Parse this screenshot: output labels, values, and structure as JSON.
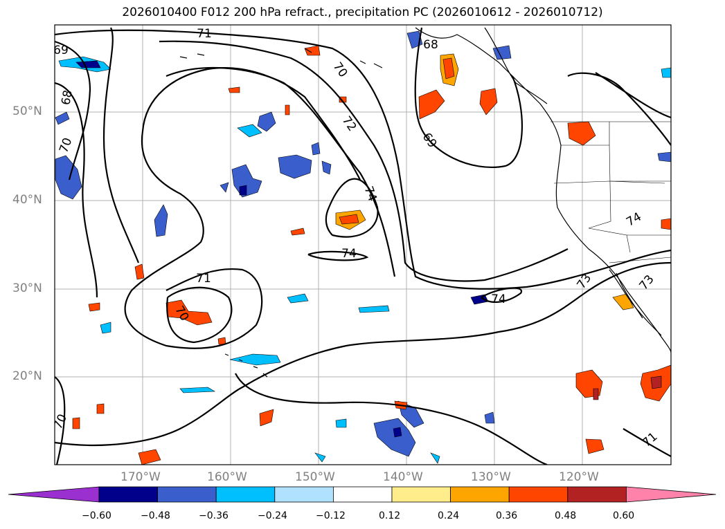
{
  "title": "2026010400 F012 200 hPa refract., precipitation PC (2026010612 - 2026010712)",
  "lat_labels": [
    "50°N",
    "40°N",
    "30°N",
    "20°N"
  ],
  "lon_labels": [
    "170°W",
    "160°W",
    "150°W",
    "140°W",
    "130°W",
    "120°W"
  ],
  "contour_labels": [
    "71",
    "69",
    "68",
    "70",
    "72",
    "74",
    "68",
    "70",
    "69",
    "74",
    "71",
    "70",
    "74",
    "73",
    "74",
    "73",
    "70",
    "71"
  ],
  "colorbar": {
    "ticks": [
      "−0.60",
      "−0.48",
      "−0.36",
      "−0.24",
      "−0.12",
      "0.12",
      "0.24",
      "0.36",
      "0.48",
      "0.60"
    ],
    "colors": [
      "#9b30d0",
      "#00008b",
      "#3a5fcd",
      "#00bfff",
      "#b0e2ff",
      "#ffffff",
      "#ffec8b",
      "#ffa500",
      "#ff4500",
      "#b22222",
      "#ff82ab"
    ]
  }
}
